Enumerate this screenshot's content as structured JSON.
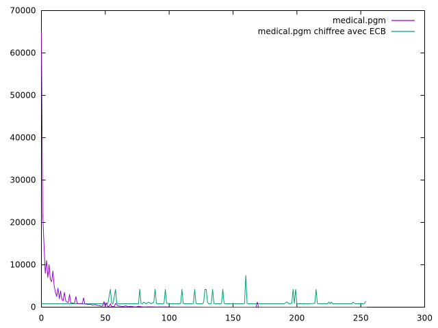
{
  "chart_data": {
    "type": "line",
    "title": "",
    "xlabel": "",
    "ylabel": "",
    "xlim": [
      0,
      300
    ],
    "ylim": [
      0,
      70000
    ],
    "x_ticks": [
      0,
      50,
      100,
      150,
      200,
      250,
      300
    ],
    "y_ticks": [
      0,
      10000,
      20000,
      30000,
      40000,
      50000,
      60000,
      70000
    ],
    "x_tick_labels": [
      "0",
      "50",
      "100",
      "150",
      "200",
      "250",
      "300"
    ],
    "y_tick_labels": [
      "0",
      "10000",
      "20000",
      "30000",
      "40000",
      "50000",
      "60000",
      "70000"
    ],
    "grid": false,
    "legend_position": "top-right",
    "series": [
      {
        "name": "medical.pgm",
        "color": "#9400d3",
        "x": [
          0,
          1,
          2,
          3,
          4,
          5,
          6,
          7,
          8,
          9,
          10,
          11,
          12,
          13,
          14,
          15,
          16,
          17,
          18,
          19,
          20,
          21,
          22,
          23,
          24,
          25,
          26,
          27,
          28,
          29,
          30,
          31,
          32,
          33,
          34,
          35,
          36,
          38,
          40,
          42,
          44,
          46,
          47,
          48,
          49,
          50,
          51,
          52,
          53,
          54,
          55,
          56,
          57,
          58,
          60,
          62,
          64,
          66,
          68,
          70,
          72,
          74,
          76,
          78,
          80,
          85,
          90,
          95,
          100,
          110,
          120,
          130,
          140,
          150,
          160,
          168,
          169,
          170,
          180,
          190,
          200,
          210,
          220,
          230,
          240,
          250,
          255
        ],
        "values": [
          65000,
          22000,
          15000,
          8000,
          11000,
          7000,
          10000,
          6500,
          6000,
          8500,
          5000,
          3500,
          2500,
          4500,
          2000,
          3800,
          1800,
          1500,
          3500,
          1500,
          1200,
          1100,
          3000,
          1000,
          1000,
          900,
          1000,
          2500,
          800,
          900,
          800,
          900,
          700,
          2200,
          700,
          800,
          600,
          700,
          500,
          600,
          400,
          300,
          200,
          300,
          1300,
          200,
          1000,
          100,
          200,
          800,
          100,
          200,
          100,
          900,
          300,
          200,
          150,
          300,
          100,
          200,
          100,
          50,
          200,
          100,
          50,
          80,
          40,
          60,
          30,
          20,
          15,
          10,
          10,
          5,
          5,
          5,
          1200,
          5,
          5,
          5,
          5,
          5,
          5,
          5,
          5,
          5,
          5
        ]
      },
      {
        "name": "medical.pgm chiffree avec ECB",
        "color": "#009e73",
        "x": [
          0,
          5,
          10,
          20,
          30,
          40,
          45,
          50,
          52,
          54,
          55,
          56,
          58,
          59,
          60,
          62,
          70,
          76,
          77,
          78,
          79,
          80,
          82,
          84,
          86,
          88,
          89,
          90,
          91,
          92,
          95,
          96,
          97,
          98,
          100,
          108,
          109,
          110,
          111,
          112,
          118,
          119,
          120,
          121,
          122,
          126,
          127,
          128,
          129,
          130,
          131,
          132,
          133,
          134,
          135,
          136,
          140,
          141,
          142,
          143,
          144,
          150,
          158,
          159,
          160,
          161,
          162,
          170,
          180,
          190,
          192,
          194,
          196,
          197,
          198,
          199,
          200,
          201,
          202,
          210,
          214,
          215,
          216,
          217,
          220,
          224,
          225,
          226,
          227,
          228,
          230,
          240,
          243,
          244,
          245,
          246,
          250,
          252,
          253,
          254
        ],
        "values": [
          800,
          800,
          800,
          800,
          800,
          800,
          800,
          800,
          900,
          4200,
          900,
          800,
          4200,
          900,
          800,
          800,
          800,
          800,
          4200,
          900,
          800,
          1200,
          800,
          1200,
          800,
          1200,
          4200,
          900,
          800,
          800,
          800,
          900,
          4200,
          900,
          800,
          800,
          900,
          4200,
          900,
          800,
          800,
          900,
          4200,
          900,
          800,
          800,
          1200,
          4200,
          4200,
          1200,
          800,
          800,
          900,
          4200,
          900,
          800,
          800,
          900,
          4200,
          900,
          800,
          800,
          800,
          900,
          7500,
          900,
          800,
          800,
          800,
          800,
          1200,
          800,
          900,
          4200,
          900,
          4200,
          900,
          800,
          800,
          800,
          900,
          4200,
          900,
          800,
          800,
          800,
          1200,
          800,
          1200,
          800,
          800,
          800,
          800,
          1200,
          900,
          800,
          800,
          800,
          900,
          1400
        ]
      }
    ]
  }
}
